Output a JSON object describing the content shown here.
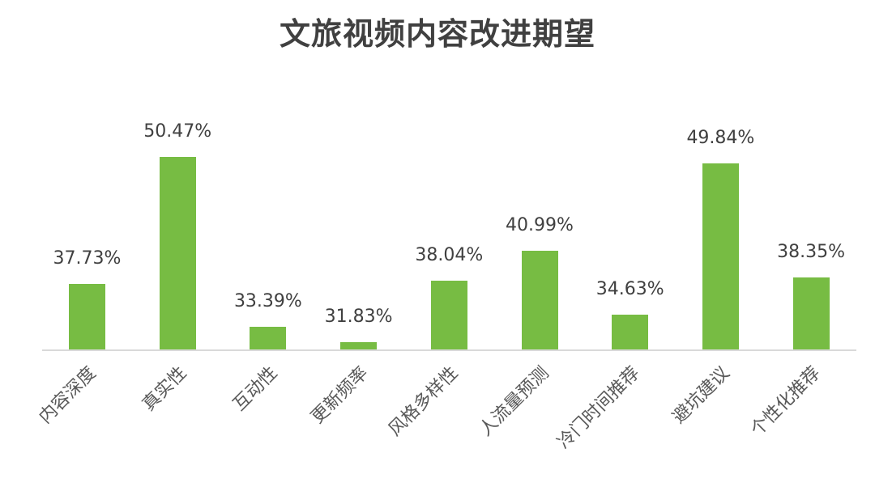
{
  "chart_data": {
    "type": "bar",
    "title": "文旅视频内容改进期望",
    "xlabel": "",
    "ylabel": "",
    "categories": [
      "内容深度",
      "真实性",
      "互动性",
      "更新频率",
      "风格多样性",
      "人流量预测",
      "冷门时间推荐",
      "避坑建议",
      "个性化推荐"
    ],
    "values": [
      37.73,
      50.47,
      33.39,
      31.83,
      38.04,
      40.99,
      34.63,
      49.84,
      38.35
    ],
    "value_labels": [
      "37.73%",
      "50.47%",
      "33.39%",
      "31.83%",
      "38.04%",
      "40.99%",
      "34.63%",
      "49.84%",
      "38.35%"
    ],
    "ylim": [
      31.1,
      52
    ],
    "grid": false,
    "legend": null,
    "bar_color": "#77bc43"
  }
}
